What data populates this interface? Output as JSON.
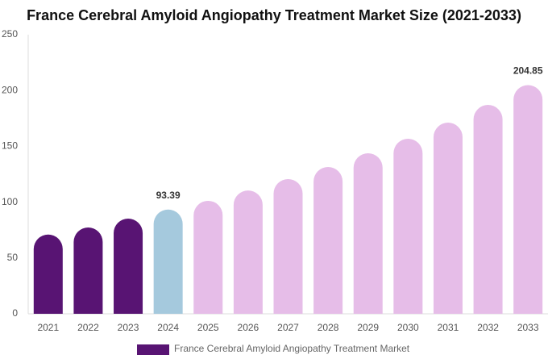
{
  "chart_data": {
    "type": "bar",
    "title": "France Cerebral Amyloid Angiopathy Treatment Market Size (2021-2033)",
    "categories": [
      "2021",
      "2022",
      "2023",
      "2024",
      "2025",
      "2026",
      "2027",
      "2028",
      "2029",
      "2030",
      "2031",
      "2032",
      "2033"
    ],
    "series": [
      {
        "name": "France Cerebral Amyloid Angiopathy Treatment Market",
        "color": "#581473",
        "values": [
          71,
          77.3,
          85.3,
          93.39,
          101.2,
          110.5,
          120.7,
          131.5,
          143.8,
          156.8,
          171.2,
          187.1,
          204.85
        ],
        "value_labels": [
          null,
          null,
          null,
          "93.39",
          null,
          null,
          null,
          null,
          null,
          null,
          null,
          null,
          "204.85"
        ],
        "bar_colors": [
          "#581473",
          "#581473",
          "#581473",
          "#a5c9dd",
          "#e6bde8",
          "#e6bde8",
          "#e6bde8",
          "#e6bde8",
          "#e6bde8",
          "#e6bde8",
          "#e6bde8",
          "#e6bde8",
          "#e6bde8"
        ]
      }
    ],
    "ylim": [
      0,
      250
    ],
    "yticks": [
      0,
      50,
      100,
      150,
      200,
      250
    ],
    "grid": false
  }
}
